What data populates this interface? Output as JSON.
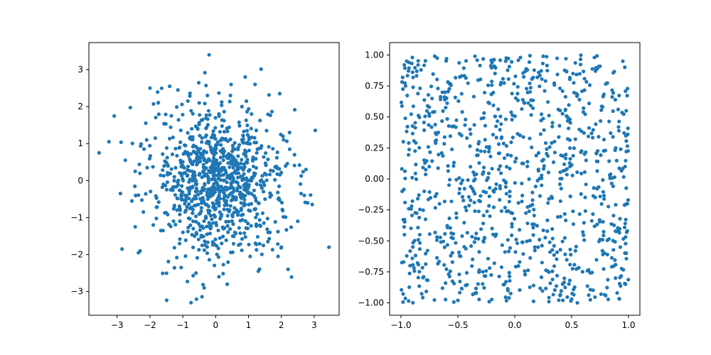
{
  "chart_data": [
    {
      "type": "scatter",
      "title": "",
      "xlabel": "",
      "ylabel": "",
      "xlim": [
        -3.86,
        3.76
      ],
      "ylim": [
        -3.64,
        3.73
      ],
      "xticks": [
        -3,
        -2,
        -1,
        0,
        1,
        2,
        3
      ],
      "xtick_labels": [
        "−3",
        "−2",
        "−1",
        "0",
        "1",
        "2",
        "3"
      ],
      "yticks": [
        -3,
        -2,
        -1,
        0,
        1,
        2,
        3
      ],
      "ytick_labels": [
        "−3",
        "−2",
        "−1",
        "0",
        "1",
        "2",
        "3"
      ],
      "grid": false,
      "legend": "none",
      "color": "#1f77b4",
      "distribution": "standard normal, about 1000 points",
      "n_points": 1000,
      "series": [
        {
          "x": [
            -3.55,
            -3.25,
            -2.9,
            -2.75,
            -2.55,
            -2.45,
            -2.3,
            -2.1,
            -2.0,
            -1.75,
            -1.4,
            -1.15,
            -0.2,
            0.9,
            1.2,
            1.55,
            1.95,
            2.05,
            2.4,
            2.6,
            2.75,
            2.8,
            2.7,
            2.5,
            3.45,
            -2.85,
            -2.35,
            -2.45,
            -1.05,
            -0.75,
            -0.35,
            0.35,
            1.3,
            2.0,
            1.9,
            -0.25,
            0.45,
            -0.5,
            0.8,
            -1.9,
            -2.2,
            -1.6,
            1.6,
            2.25,
            -0.6,
            0.1,
            1.05,
            -1.35
          ],
          "y": [
            0.75,
            1.05,
            -0.35,
            0.55,
            -0.55,
            0.25,
            -1.9,
            1.1,
            2.5,
            2.1,
            2.55,
            2.45,
            3.4,
            2.8,
            2.6,
            1.35,
            2.35,
            1.2,
            0.7,
            -0.35,
            0.3,
            -0.6,
            -0.4,
            -1.1,
            -1.8,
            -1.85,
            -1.95,
            -1.25,
            -2.35,
            -3.3,
            -2.9,
            -2.8,
            -2.45,
            -1.8,
            -2.05,
            2.3,
            2.3,
            2.1,
            2.0,
            -1.2,
            -0.85,
            -1.35,
            -1.4,
            1.3,
            -2.5,
            -2.6,
            -2.05,
            1.75
          ]
        }
      ]
    },
    {
      "type": "scatter",
      "title": "",
      "xlabel": "",
      "ylabel": "",
      "xlim": [
        -1.1,
        1.1
      ],
      "ylim": [
        -1.1,
        1.1
      ],
      "xticks": [
        -1.0,
        -0.5,
        0.0,
        0.5,
        1.0
      ],
      "xtick_labels": [
        "−1.0",
        "−0.5",
        "0.0",
        "0.5",
        "1.0"
      ],
      "yticks": [
        -1.0,
        -0.75,
        -0.5,
        -0.25,
        0.0,
        0.25,
        0.5,
        0.75,
        1.0
      ],
      "ytick_labels": [
        "−1.00",
        "−0.75",
        "−0.50",
        "−0.25",
        "0.00",
        "0.25",
        "0.50",
        "0.75",
        "1.00"
      ],
      "grid": false,
      "legend": "none",
      "color": "#1f77b4",
      "distribution": "uniform on [−1, 1] × [−1, 1], about 1000 points",
      "n_points": 1000,
      "series": [
        {
          "x": [
            -0.95,
            -0.9,
            -0.85,
            -0.6,
            -0.35,
            0.05,
            0.25,
            0.45,
            0.7,
            0.95,
            0.98,
            -0.98,
            -0.97,
            -0.92,
            -0.5,
            -0.05,
            0.3,
            0.5,
            0.55,
            0.9,
            0.98,
            -0.99,
            0.99,
            -0.96,
            0.97
          ],
          "y": [
            0.95,
            0.98,
            0.92,
            0.97,
            0.99,
            0.98,
            0.99,
            0.97,
            0.98,
            0.95,
            0.55,
            0.3,
            -0.45,
            -0.7,
            -0.98,
            -0.96,
            -0.99,
            -0.97,
            -1.0,
            -0.92,
            -0.6,
            -0.1,
            -0.2,
            0.75,
            0.1
          ]
        }
      ]
    }
  ]
}
